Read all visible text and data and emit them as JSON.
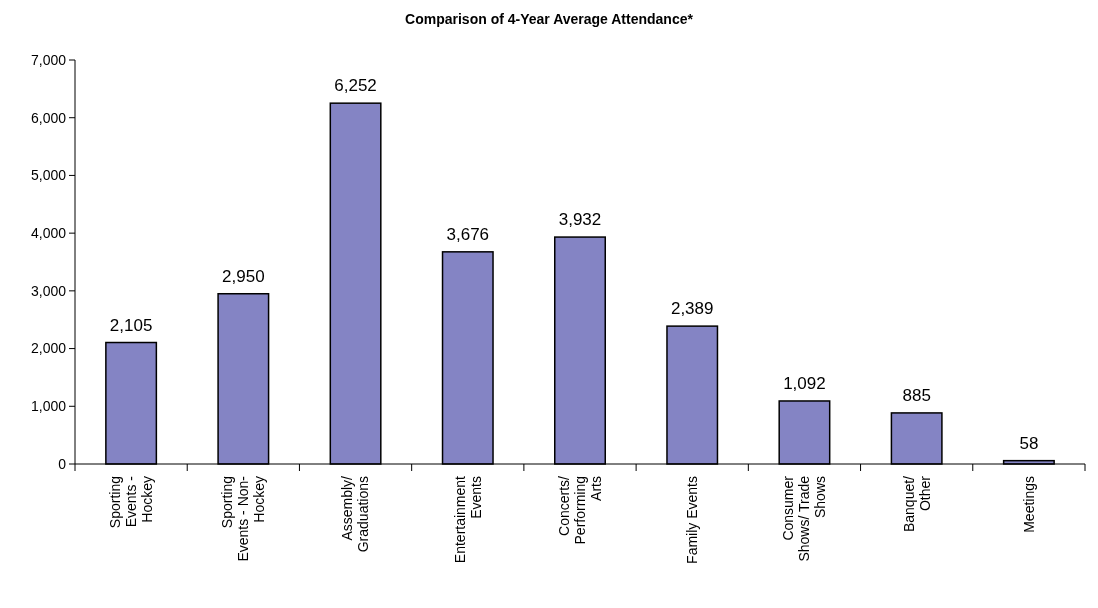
{
  "chart_data": {
    "type": "bar",
    "title": "Comparison of 4-Year Average Attendance*",
    "categories": [
      "Sporting Events - Hockey",
      "Sporting Events - Non-Hockey",
      "Assembly/ Graduations",
      "Entertainment Events",
      "Concerts/ Performing Arts",
      "Family Events",
      "Consumer Shows/ Trade Shows",
      "Banquet/ Other",
      "Meetings"
    ],
    "values": [
      2105,
      2950,
      6252,
      3676,
      3932,
      2389,
      1092,
      885,
      58
    ],
    "color": "#8484c4",
    "ylim": [
      0,
      7000
    ],
    "yticks": [
      {
        "value": 0,
        "label": "0"
      },
      {
        "value": 1000,
        "label": "1,000"
      },
      {
        "value": 2000,
        "label": "2,000"
      },
      {
        "value": 3000,
        "label": "3,000"
      },
      {
        "value": 4000,
        "label": "4,000"
      },
      {
        "value": 5000,
        "label": "5,000"
      },
      {
        "value": 6000,
        "label": "6,000"
      },
      {
        "value": 7000,
        "label": "7,000"
      }
    ],
    "value_labels": [
      "2,105",
      "2,950",
      "6,252",
      "3,676",
      "3,932",
      "2,389",
      "1,092",
      "885",
      "58"
    ],
    "grid": false
  }
}
